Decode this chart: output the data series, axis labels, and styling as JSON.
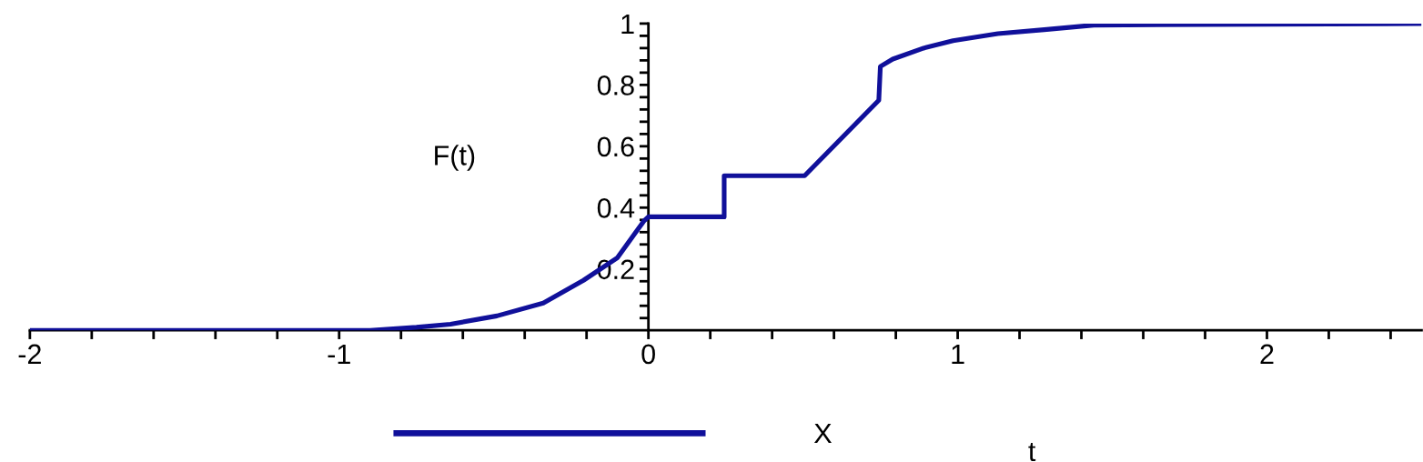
{
  "chart_data": {
    "type": "line",
    "xlabel": "t",
    "ylabel": "F(t)",
    "legend": "bottom",
    "grid": false,
    "marker": "none",
    "line_style": "solid",
    "xlim": [
      -2,
      2.5
    ],
    "ylim": [
      0,
      1
    ],
    "xticks": [
      -2,
      {
        "value": -1.8,
        "label": null
      },
      {
        "value": -1.6,
        "label": null
      },
      {
        "value": -1.4,
        "label": null
      },
      {
        "value": -1.2,
        "label": null
      },
      -1,
      {
        "value": -0.8,
        "label": null
      },
      {
        "value": -0.6,
        "label": null
      },
      {
        "value": -0.4,
        "label": null
      },
      {
        "value": -0.2,
        "label": null
      },
      0,
      {
        "value": 0.2,
        "label": null
      },
      {
        "value": 0.4,
        "label": null
      },
      {
        "value": 0.6,
        "label": null
      },
      {
        "value": 0.8,
        "label": null
      },
      1,
      {
        "value": 1.2,
        "label": null
      },
      {
        "value": 1.4,
        "label": null
      },
      {
        "value": 1.6,
        "label": null
      },
      {
        "value": 1.8,
        "label": null
      },
      2,
      {
        "value": 2.2,
        "label": null
      },
      {
        "value": 2.4,
        "label": null
      }
    ],
    "yticks": [
      {
        "value": 0.04,
        "label": null
      },
      {
        "value": 0.08,
        "label": null
      },
      {
        "value": 0.12,
        "label": null
      },
      {
        "value": 0.16,
        "label": null
      },
      0.2,
      {
        "value": 0.24,
        "label": null
      },
      {
        "value": 0.28,
        "label": null
      },
      {
        "value": 0.32,
        "label": null
      },
      {
        "value": 0.36,
        "label": null
      },
      0.4,
      {
        "value": 0.44,
        "label": null
      },
      {
        "value": 0.48,
        "label": null
      },
      {
        "value": 0.52,
        "label": null
      },
      {
        "value": 0.56,
        "label": null
      },
      0.6,
      {
        "value": 0.64,
        "label": null
      },
      {
        "value": 0.68,
        "label": null
      },
      {
        "value": 0.72,
        "label": null
      },
      {
        "value": 0.76,
        "label": null
      },
      0.8,
      {
        "value": 0.84,
        "label": null
      },
      {
        "value": 0.88,
        "label": null
      },
      {
        "value": 0.92,
        "label": null
      },
      {
        "value": 0.96,
        "label": null
      },
      1
    ],
    "series": [
      {
        "name": "X",
        "color": "#10109a",
        "x": [
          -2,
          -0.9,
          -0.75,
          -0.64,
          -0.49,
          -0.34,
          -0.21,
          -0.1,
          -0.015,
          0,
          0.245,
          0.245,
          0.505,
          0.745,
          0.75,
          0.79,
          0.89,
          0.985,
          1.13,
          1.28,
          1.44,
          2.5
        ],
        "values": [
          0,
          0,
          0.01,
          0.02,
          0.047,
          0.089,
          0.163,
          0.237,
          0.356,
          0.37,
          0.37,
          0.504,
          0.504,
          0.75,
          0.86,
          0.884,
          0.92,
          0.944,
          0.967,
          0.98,
          0.995,
          1
        ]
      }
    ]
  }
}
